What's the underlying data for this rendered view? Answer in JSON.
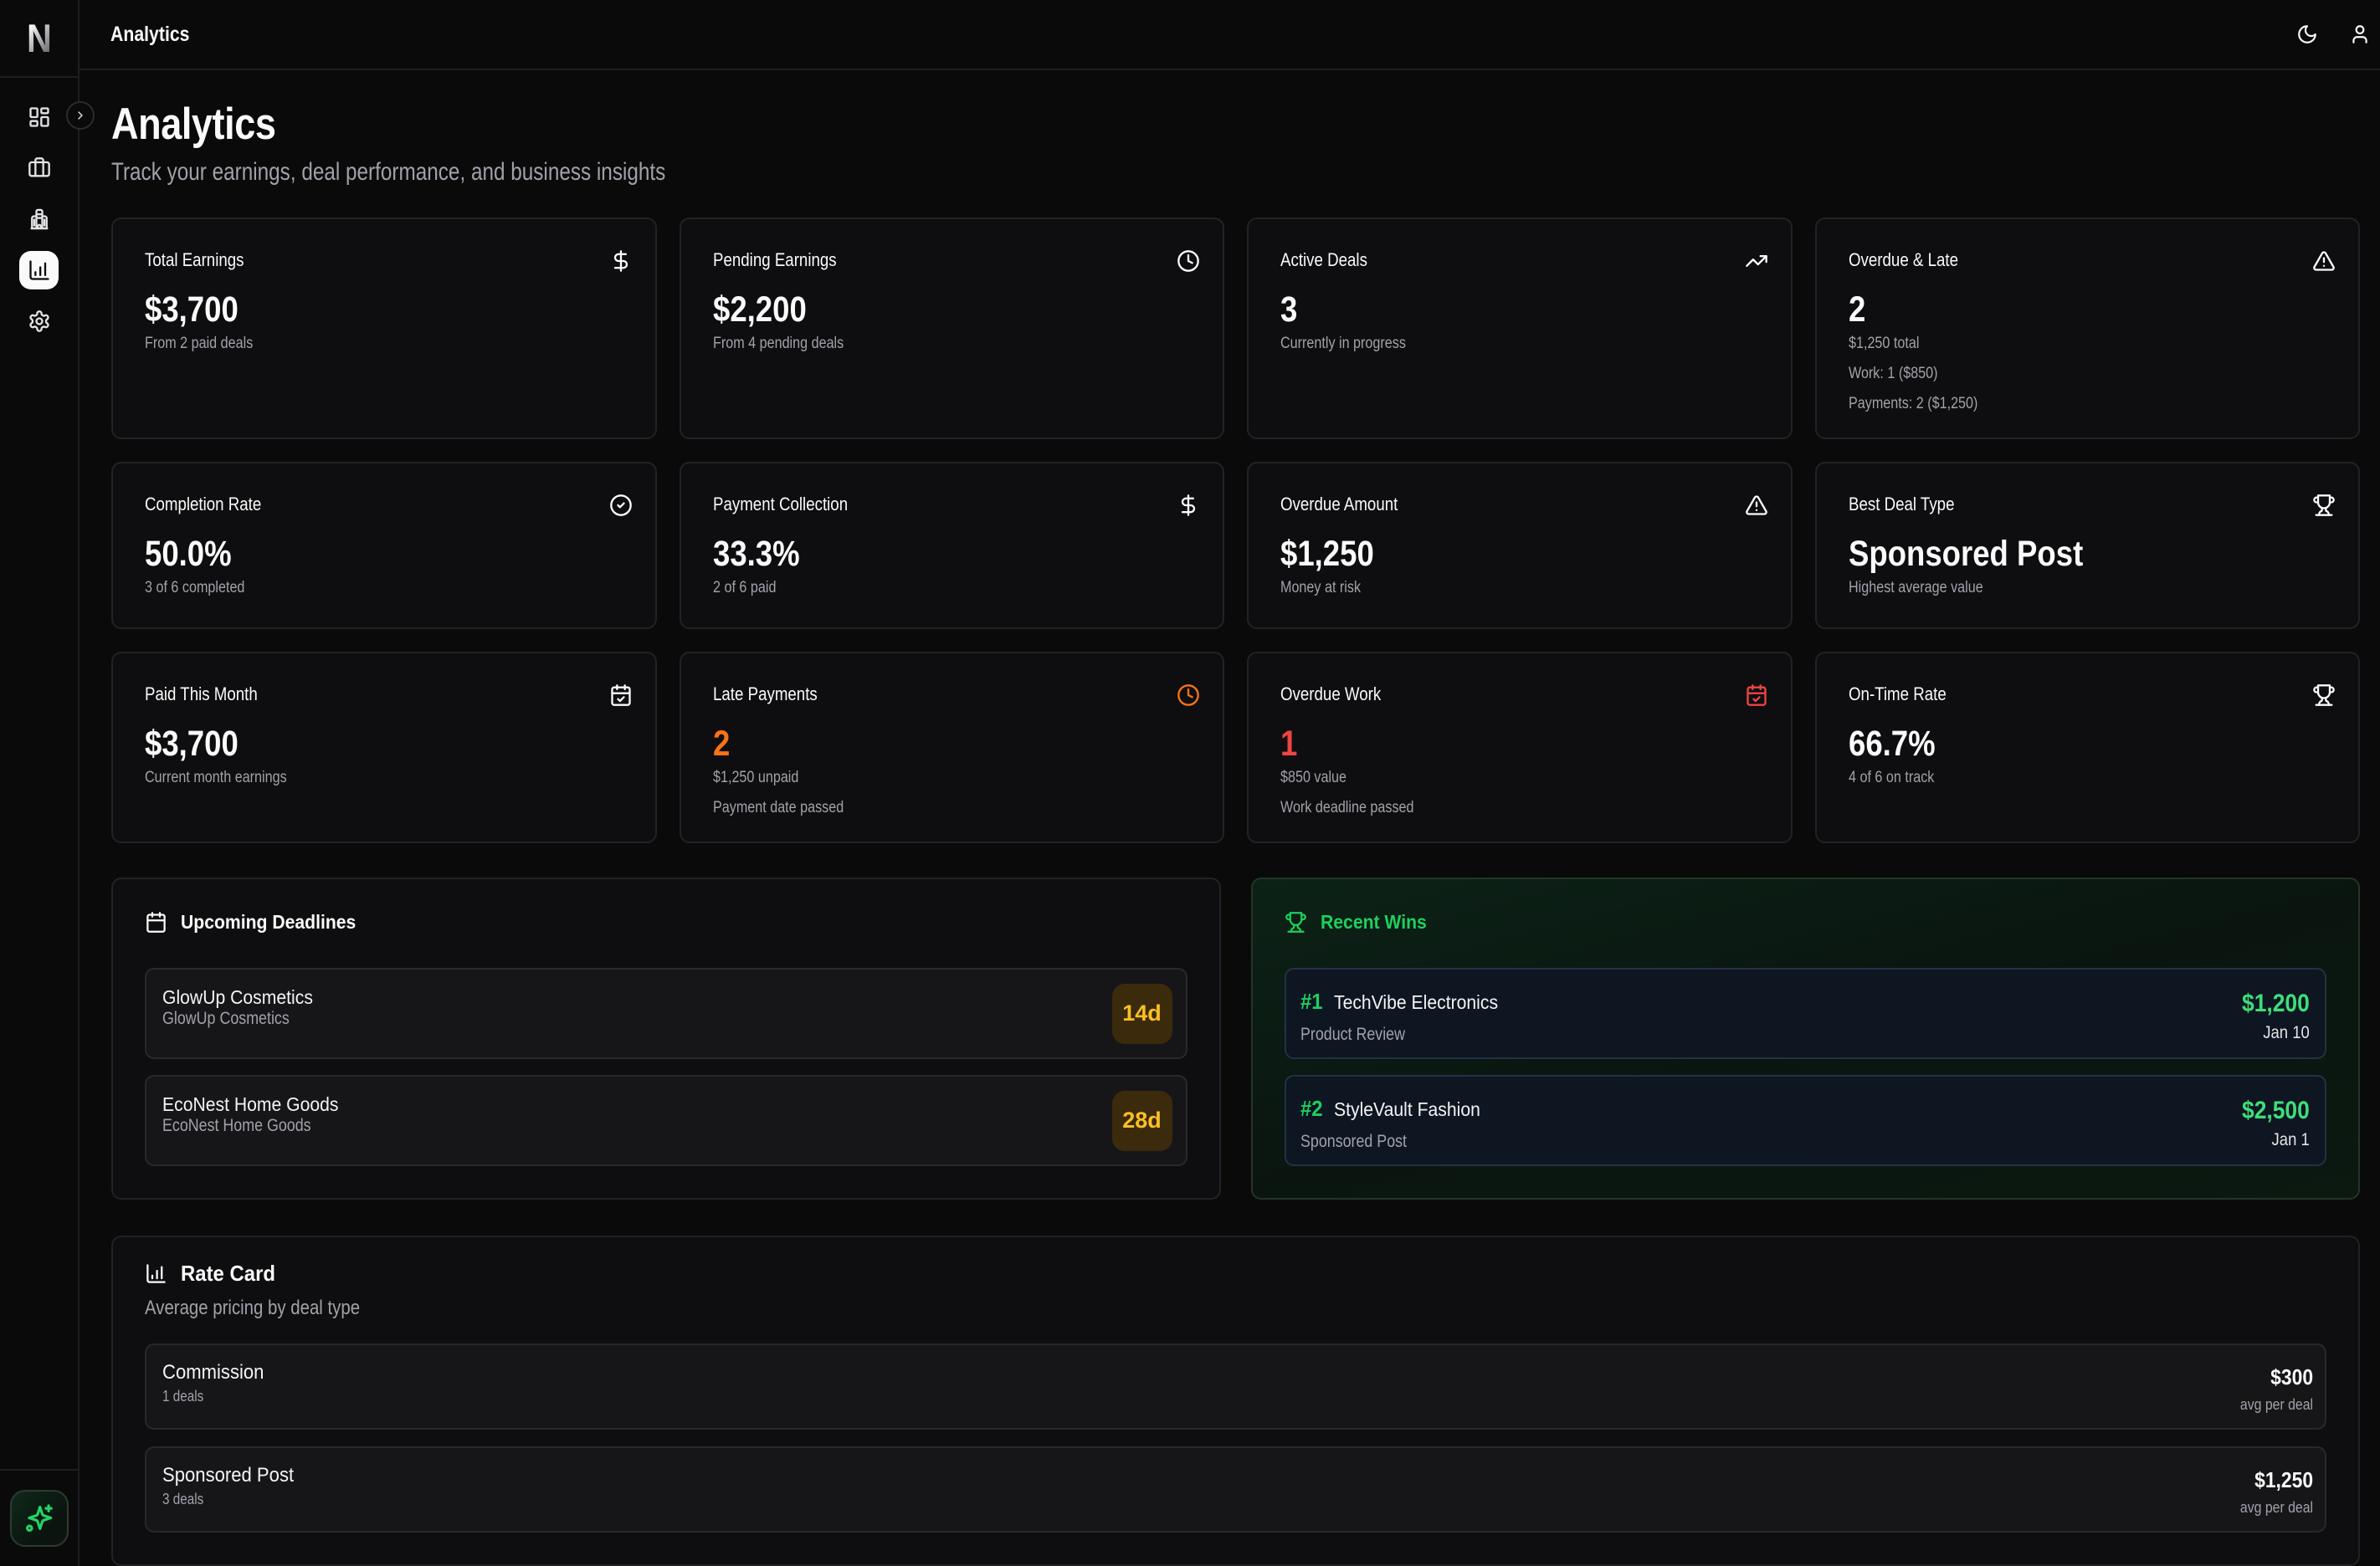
{
  "app": {
    "logo_text": "N",
    "topbar_title": "Analytics"
  },
  "topbar": {
    "actions": [
      {
        "name": "theme-toggle",
        "icon": "moon"
      },
      {
        "name": "account",
        "icon": "user"
      }
    ]
  },
  "sidebar": {
    "expand_icon": "chevron-right",
    "items": [
      {
        "name": "dashboard",
        "icon": "layout-dashboard",
        "active": false
      },
      {
        "name": "deals",
        "icon": "briefcase",
        "active": false
      },
      {
        "name": "brands",
        "icon": "building",
        "active": false
      },
      {
        "name": "analytics",
        "icon": "bar-chart",
        "active": true
      },
      {
        "name": "settings",
        "icon": "settings",
        "active": false
      }
    ],
    "footer": {
      "name": "ai-assistant",
      "icon": "sparkles"
    }
  },
  "page": {
    "title": "Analytics",
    "subtitle": "Track your earnings, deal performance, and business insights"
  },
  "stats": {
    "cards": [
      {
        "label": "Total Earnings",
        "icon": "dollar-sign",
        "value": "$3,700",
        "subtitles": [
          "From 2 paid deals"
        ]
      },
      {
        "label": "Pending Earnings",
        "icon": "clock",
        "value": "$2,200",
        "subtitles": [
          "From 4 pending deals"
        ]
      },
      {
        "label": "Active Deals",
        "icon": "trending-up",
        "value": "3",
        "subtitles": [
          "Currently in progress"
        ]
      },
      {
        "label": "Overdue & Late",
        "icon": "alert-triangle",
        "value": "2",
        "subtitles": [
          "$1,250 total",
          "Work: 1 ($850)",
          "Payments: 2 ($1,250)"
        ]
      },
      {
        "label": "Completion Rate",
        "icon": "circle-check",
        "value": "50.0%",
        "subtitles": [
          "3 of 6 completed"
        ]
      },
      {
        "label": "Payment Collection",
        "icon": "dollar-sign",
        "value": "33.3%",
        "subtitles": [
          "2 of 6 paid"
        ]
      },
      {
        "label": "Overdue Amount",
        "icon": "alert-triangle",
        "value": "$1,250",
        "subtitles": [
          "Money at risk"
        ]
      },
      {
        "label": "Best Deal Type",
        "icon": "trophy",
        "value": "Sponsored Post",
        "subtitles": [
          "Highest average value"
        ]
      },
      {
        "label": "Paid This Month",
        "icon": "calendar-check",
        "value": "$3,700",
        "subtitles": [
          "Current month earnings"
        ]
      },
      {
        "label": "Late Payments",
        "icon": "clock",
        "icon_color": "#f97316",
        "value": "2",
        "value_color": "#f97316",
        "subtitles": [
          "$1,250 unpaid",
          "Payment date passed"
        ]
      },
      {
        "label": "Overdue Work",
        "icon": "calendar-check",
        "icon_color": "#ef4444",
        "value": "1",
        "value_color": "#ef4444",
        "subtitles": [
          "$850 value",
          "Work deadline passed"
        ]
      },
      {
        "label": "On-Time Rate",
        "icon": "trophy",
        "value": "66.7%",
        "subtitles": [
          "4 of 6 on track"
        ]
      }
    ]
  },
  "deadlines": {
    "title": "Upcoming Deadlines",
    "icon": "calendar",
    "items": [
      {
        "title": "GlowUp Cosmetics",
        "subtitle": "GlowUp Cosmetics",
        "badge": "14d"
      },
      {
        "title": "EcoNest Home Goods",
        "subtitle": "EcoNest Home Goods",
        "badge": "28d"
      }
    ]
  },
  "wins": {
    "title": "Recent Wins",
    "icon": "trophy",
    "items": [
      {
        "rank": "#1",
        "brand": "TechVibe Electronics",
        "deal_type": "Product Review",
        "amount": "$1,200",
        "date": "Jan 10"
      },
      {
        "rank": "#2",
        "brand": "StyleVault Fashion",
        "deal_type": "Sponsored Post",
        "amount": "$2,500",
        "date": "Jan 1"
      }
    ]
  },
  "rate_card": {
    "title": "Rate Card",
    "icon": "bar-chart",
    "subtitle": "Average pricing by deal type",
    "rows": [
      {
        "type": "Commission",
        "deals": "1 deals",
        "price": "$300",
        "note": "avg per deal"
      },
      {
        "type": "Sponsored Post",
        "deals": "3 deals",
        "price": "$1,250",
        "note": "avg per deal"
      }
    ]
  },
  "colors": {
    "accent_green": "#1fcf5f",
    "amount_green": "#3fdd7a",
    "warning_orange": "#f97316",
    "danger_red": "#ef4444",
    "badge_amber": "#fbbf24"
  }
}
